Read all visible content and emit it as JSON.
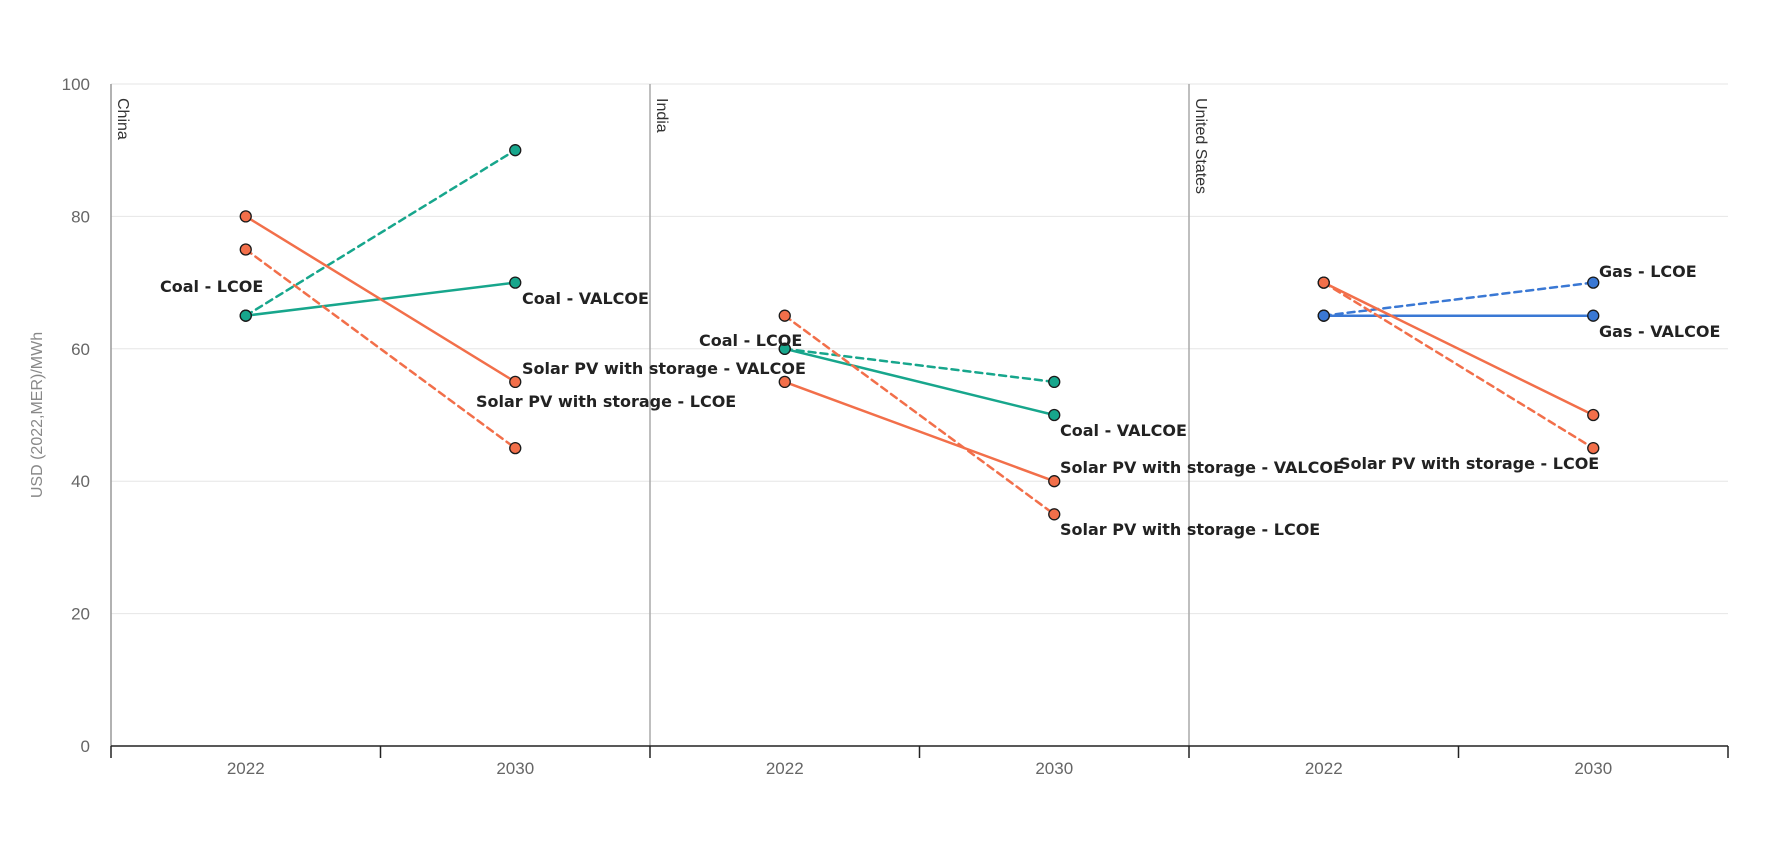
{
  "chart_data": {
    "type": "line",
    "ylabel": "USD (2022,MER)/MWh",
    "ylim": [
      0,
      100
    ],
    "yticks": [
      0,
      20,
      40,
      60,
      80,
      100
    ],
    "xticks": [
      "2022",
      "2030"
    ],
    "grid": true,
    "colors": {
      "coal": "#17a68c",
      "solar": "#f26f4a",
      "gas": "#3a78d4"
    },
    "panels": [
      {
        "name": "China",
        "series": [
          {
            "name": "Coal - LCOE",
            "color_key": "coal",
            "dashed": true,
            "values": [
              65,
              90
            ]
          },
          {
            "name": "Coal - VALCOE",
            "color_key": "coal",
            "dashed": false,
            "values": [
              65,
              70
            ]
          },
          {
            "name": "Solar PV with storage - VALCOE",
            "color_key": "solar",
            "dashed": false,
            "values": [
              80,
              55
            ]
          },
          {
            "name": "Solar PV with storage - LCOE",
            "color_key": "solar",
            "dashed": true,
            "values": [
              75,
              45
            ]
          }
        ]
      },
      {
        "name": "India",
        "series": [
          {
            "name": "Coal - LCOE",
            "color_key": "coal",
            "dashed": true,
            "values": [
              60,
              55
            ]
          },
          {
            "name": "Coal - VALCOE",
            "color_key": "coal",
            "dashed": false,
            "values": [
              60,
              50
            ]
          },
          {
            "name": "Solar PV with storage - VALCOE",
            "color_key": "solar",
            "dashed": false,
            "values": [
              55,
              40
            ]
          },
          {
            "name": "Solar PV with storage - LCOE",
            "color_key": "solar",
            "dashed": true,
            "values": [
              65,
              35
            ]
          }
        ]
      },
      {
        "name": "United States",
        "series": [
          {
            "name": "Gas - LCOE",
            "color_key": "gas",
            "dashed": true,
            "values": [
              65,
              70
            ]
          },
          {
            "name": "Gas - VALCOE",
            "color_key": "gas",
            "dashed": false,
            "values": [
              65,
              65
            ]
          },
          {
            "name": "Solar PV with storage - VALCOE",
            "color_key": "solar",
            "dashed": false,
            "values": [
              70,
              50
            ]
          },
          {
            "name": "Solar PV with storage - LCOE",
            "color_key": "solar",
            "dashed": true,
            "values": [
              70,
              45
            ]
          }
        ]
      }
    ],
    "labels": [
      {
        "panel": 0,
        "text": "Coal - LCOE"
      },
      {
        "panel": 0,
        "text": "Coal - VALCOE"
      },
      {
        "panel": 0,
        "text": "Solar PV with storage - VALCOE"
      },
      {
        "panel": 0,
        "text": "Solar PV with storage - LCOE"
      },
      {
        "panel": 1,
        "text": "Coal - LCOE"
      },
      {
        "panel": 1,
        "text": "Coal - VALCOE"
      },
      {
        "panel": 1,
        "text": "Solar PV with storage - VALCOE"
      },
      {
        "panel": 1,
        "text": "Solar PV with storage - LCOE"
      },
      {
        "panel": 2,
        "text": "Gas - LCOE"
      },
      {
        "panel": 2,
        "text": "Gas - VALCOE"
      },
      {
        "panel": 2,
        "text": "Solar PV with storage - LCOE"
      }
    ]
  }
}
